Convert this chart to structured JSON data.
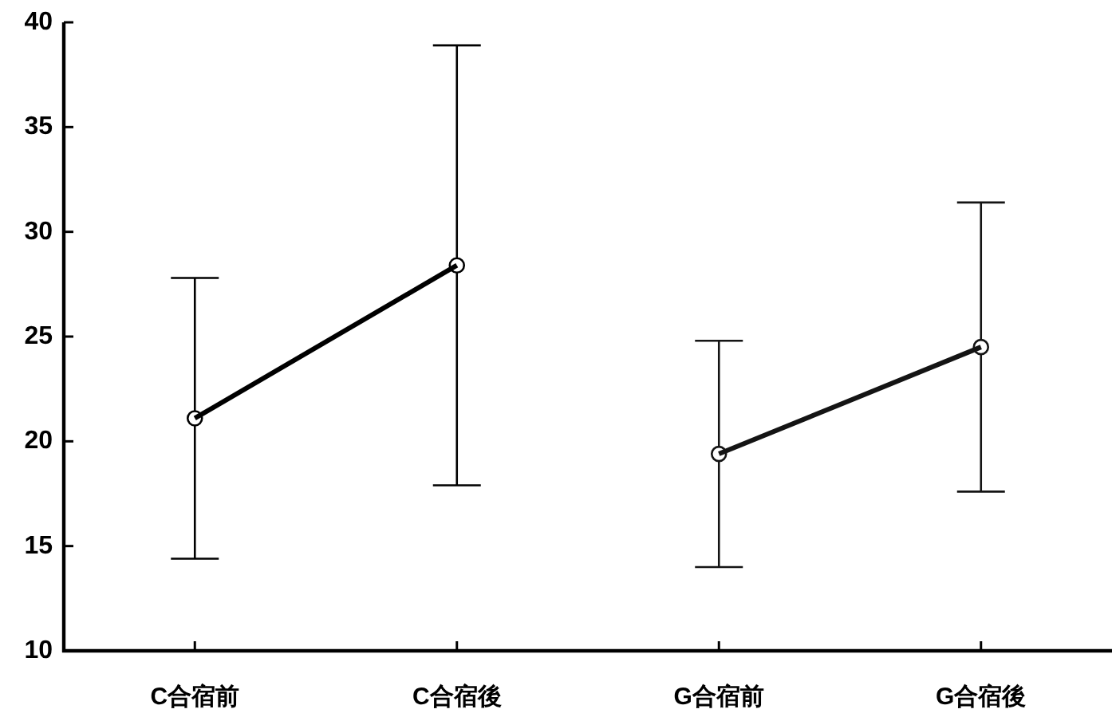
{
  "chart_data": {
    "type": "line",
    "categories": [
      "C合宿前",
      "C合宿後",
      "G合宿前",
      "G合宿後"
    ],
    "series": [
      {
        "color": "#000000",
        "values": [
          21.1,
          28.4,
          null,
          null
        ],
        "errors": [
          6.7,
          10.5,
          null,
          null
        ]
      },
      {
        "color": "#141414",
        "values": [
          null,
          null,
          19.4,
          24.5
        ],
        "errors": [
          null,
          null,
          5.4,
          6.9
        ]
      }
    ],
    "ylim": [
      10,
      40
    ],
    "yticks": [
      10,
      15,
      20,
      25,
      30,
      35,
      40
    ],
    "marker": "circle"
  }
}
